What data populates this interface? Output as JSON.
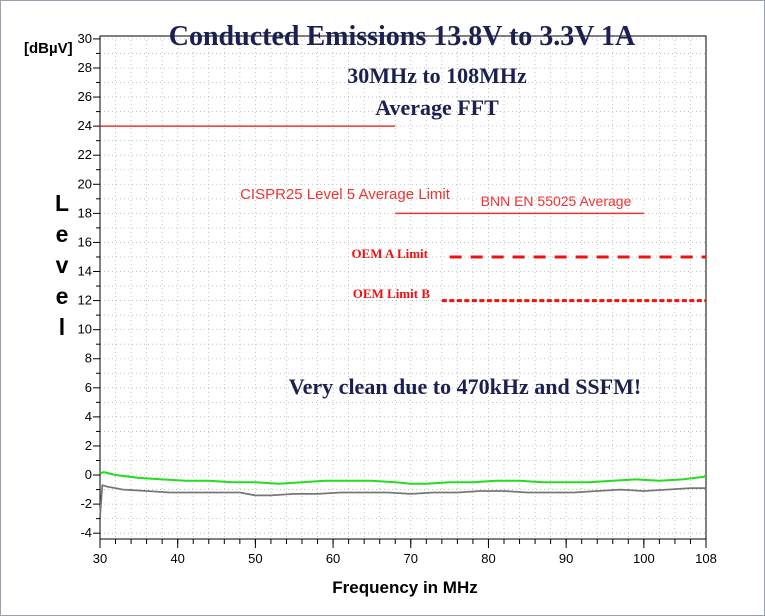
{
  "chart_data": {
    "type": "line",
    "title": "Conducted Emissions 13.8V to 3.3V 1A",
    "subtitle_lines": [
      "30MHz to 108MHz",
      "Average FFT"
    ],
    "y_unit": "[dBµV]",
    "ylabel_letters": [
      "L",
      "e",
      "v",
      "e",
      "l"
    ],
    "xlabel": "Frequency in MHz",
    "xlim": [
      30,
      108
    ],
    "ylim": [
      -4.4,
      30.2
    ],
    "x_ticks": [
      30,
      40,
      50,
      60,
      70,
      80,
      90,
      100,
      108
    ],
    "y_ticks": [
      -4,
      -2,
      0,
      2,
      4,
      6,
      8,
      10,
      12,
      14,
      16,
      18,
      20,
      22,
      24,
      26,
      28,
      30
    ],
    "grid": true,
    "series": [
      {
        "name": "",
        "color": "#22dd22",
        "x": [
          30,
          30.5,
          32,
          35,
          38,
          41,
          44,
          47,
          50,
          53,
          56,
          59,
          62,
          65,
          68,
          70,
          72,
          75,
          78,
          81,
          84,
          87,
          90,
          93,
          96,
          99,
          102,
          105,
          108
        ],
        "y": [
          0.1,
          0.2,
          0.0,
          -0.2,
          -0.3,
          -0.4,
          -0.4,
          -0.5,
          -0.5,
          -0.6,
          -0.5,
          -0.4,
          -0.4,
          -0.4,
          -0.5,
          -0.6,
          -0.6,
          -0.5,
          -0.5,
          -0.4,
          -0.4,
          -0.5,
          -0.5,
          -0.5,
          -0.4,
          -0.3,
          -0.4,
          -0.3,
          -0.1
        ]
      },
      {
        "name": "",
        "color": "#777777",
        "x": [
          30,
          30.3,
          31,
          33,
          36,
          39,
          42,
          45,
          48,
          50,
          52,
          55,
          58,
          61,
          64,
          67,
          70,
          73,
          76,
          79,
          82,
          85,
          88,
          91,
          94,
          97,
          100,
          103,
          106,
          108
        ],
        "y": [
          -2.9,
          -0.7,
          -0.8,
          -1.0,
          -1.1,
          -1.2,
          -1.2,
          -1.2,
          -1.2,
          -1.4,
          -1.4,
          -1.3,
          -1.3,
          -1.2,
          -1.2,
          -1.2,
          -1.3,
          -1.2,
          -1.2,
          -1.1,
          -1.1,
          -1.2,
          -1.2,
          -1.2,
          -1.1,
          -1.0,
          -1.1,
          -1.0,
          -0.9,
          -0.9
        ]
      }
    ],
    "limits": [
      {
        "label": "CISPR25 Level 5 Average Limit",
        "x": [
          30,
          68
        ],
        "y": 24,
        "color": "#ee3333",
        "style": "solid"
      },
      {
        "label": "BNN EN 55025 Average",
        "x": [
          68,
          100
        ],
        "y": 18,
        "color": "#ee3333",
        "style": "solid"
      },
      {
        "label": "OEM A Limit",
        "x": [
          75,
          108
        ],
        "y": 15,
        "color": "#ee1111",
        "style": "dashed"
      },
      {
        "label": "OEM Limit B",
        "x": [
          74,
          108
        ],
        "y": 12,
        "color": "#ee1111",
        "style": "dashed"
      }
    ],
    "annotation": "Very clean due to 470kHz and SSFM!"
  }
}
